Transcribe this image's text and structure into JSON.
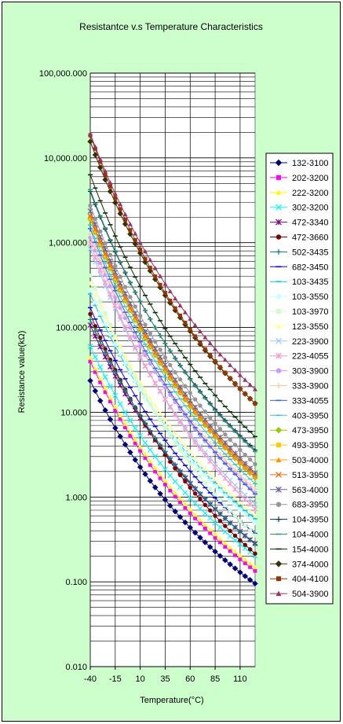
{
  "chart_data": {
    "type": "line",
    "title": "Resistantce v.s Temperature Characteristics",
    "xlabel": "Temperature(°C)",
    "ylabel": "Resistance value(kΩ)",
    "y_scale": "log",
    "ylim": [
      0.01,
      100000
    ],
    "xlim": [
      -40,
      125
    ],
    "x_ticks": [
      -40,
      -15,
      10,
      35,
      60,
      85,
      110
    ],
    "x_tick_labels": [
      "-40",
      "-15",
      "10",
      "35",
      "60",
      "85",
      "110"
    ],
    "y_ticks": [
      0.01,
      0.1,
      1,
      10,
      100,
      1000,
      10000,
      100000
    ],
    "y_tick_labels": [
      "0.010",
      "0.100",
      "1.000",
      "10.000",
      "100.000",
      "1,000.000",
      "10,000.000",
      "100,000.000"
    ],
    "grid": true,
    "legend_position": "right",
    "x": [
      -40,
      -35,
      -30,
      -25,
      -20,
      -15,
      -10,
      -5,
      0,
      5,
      10,
      15,
      20,
      25,
      30,
      35,
      40,
      45,
      50,
      55,
      60,
      65,
      70,
      75,
      80,
      85,
      90,
      95,
      100,
      105,
      110,
      115,
      120,
      125
    ],
    "series": [
      {
        "name": "132-3100",
        "color": "#000080",
        "marker": "diamond",
        "r25": 1.3,
        "b": 3100
      },
      {
        "name": "202-3200",
        "color": "#ff00ff",
        "marker": "square",
        "r25": 2.0,
        "b": 3200
      },
      {
        "name": "222-3200",
        "color": "#ffff00",
        "marker": "triangle",
        "r25": 2.2,
        "b": 3200
      },
      {
        "name": "302-3200",
        "color": "#00ffff",
        "marker": "x",
        "r25": 3.0,
        "b": 3200
      },
      {
        "name": "472-3340",
        "color": "#800080",
        "marker": "star",
        "r25": 4.7,
        "b": 3340
      },
      {
        "name": "472-3660",
        "color": "#800000",
        "marker": "circle",
        "r25": 4.7,
        "b": 3660
      },
      {
        "name": "502-3435",
        "color": "#008080",
        "marker": "plus",
        "r25": 5.0,
        "b": 3435
      },
      {
        "name": "682-3450",
        "color": "#0000ff",
        "marker": "dash",
        "r25": 6.8,
        "b": 3450
      },
      {
        "name": "103-3435",
        "color": "#00ccff",
        "marker": "dash",
        "r25": 10,
        "b": 3435
      },
      {
        "name": "103-3550",
        "color": "#ccffff",
        "marker": "diamond",
        "r25": 10,
        "b": 3550
      },
      {
        "name": "103-3970",
        "color": "#ccffcc",
        "marker": "square",
        "r25": 10,
        "b": 3970
      },
      {
        "name": "123-3550",
        "color": "#ffff99",
        "marker": "triangle",
        "r25": 12,
        "b": 3550
      },
      {
        "name": "223-3900",
        "color": "#99ccff",
        "marker": "x",
        "r25": 22,
        "b": 3900
      },
      {
        "name": "223-4055",
        "color": "#ff99cc",
        "marker": "star",
        "r25": 22,
        "b": 4055
      },
      {
        "name": "303-3900",
        "color": "#cc99ff",
        "marker": "circle",
        "r25": 30,
        "b": 3900
      },
      {
        "name": "333-3900",
        "color": "#ffcc99",
        "marker": "plus",
        "r25": 33,
        "b": 3900
      },
      {
        "name": "333-4055",
        "color": "#3366ff",
        "marker": "dash",
        "r25": 33,
        "b": 4055
      },
      {
        "name": "403-3950",
        "color": "#33cccc",
        "marker": "dash",
        "r25": 40,
        "b": 3950
      },
      {
        "name": "473-3950",
        "color": "#99cc00",
        "marker": "diamond",
        "r25": 47,
        "b": 3950
      },
      {
        "name": "493-3950",
        "color": "#ffcc00",
        "marker": "square",
        "r25": 49,
        "b": 3950
      },
      {
        "name": "503-4000",
        "color": "#ff9900",
        "marker": "triangle",
        "r25": 50,
        "b": 4000
      },
      {
        "name": "513-3950",
        "color": "#ff6600",
        "marker": "x",
        "r25": 51,
        "b": 3950
      },
      {
        "name": "563-4000",
        "color": "#666699",
        "marker": "star",
        "r25": 56,
        "b": 4000
      },
      {
        "name": "683-3950",
        "color": "#969696",
        "marker": "circle",
        "r25": 68,
        "b": 3950
      },
      {
        "name": "104-3950",
        "color": "#003366",
        "marker": "plus",
        "r25": 100,
        "b": 3950
      },
      {
        "name": "104-4000",
        "color": "#339966",
        "marker": "dash",
        "r25": 100,
        "b": 4000
      },
      {
        "name": "154-4000",
        "color": "#003300",
        "marker": "dash",
        "r25": 150,
        "b": 4000
      },
      {
        "name": "374-4000",
        "color": "#333300",
        "marker": "diamond",
        "r25": 370,
        "b": 4000
      },
      {
        "name": "404-4100",
        "color": "#993300",
        "marker": "square",
        "r25": 400,
        "b": 4100
      },
      {
        "name": "504-3900",
        "color": "#993366",
        "marker": "triangle",
        "r25": 500,
        "b": 3900
      }
    ]
  }
}
